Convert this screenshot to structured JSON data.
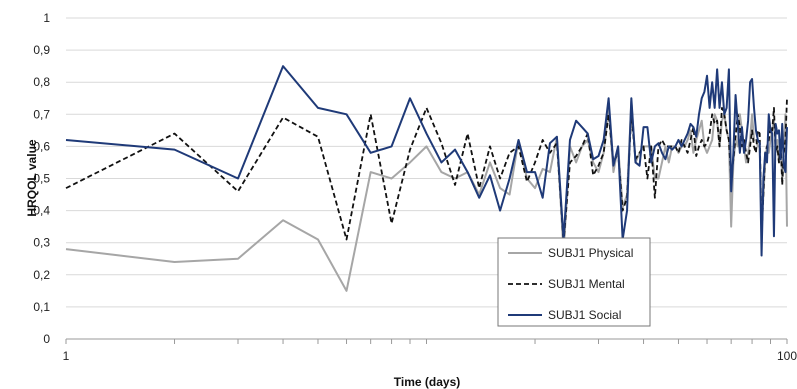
{
  "chart_data": {
    "type": "line",
    "xlabel": "Time (days)",
    "ylabel": "HRQOL value",
    "x_scale": "log",
    "xlim": [
      1,
      100
    ],
    "ylim": [
      0,
      1
    ],
    "x_ticks": [
      {
        "value": 1,
        "label": "1"
      },
      {
        "value": 100,
        "label": "100"
      }
    ],
    "y_ticks": [
      {
        "value": 0,
        "label": "0"
      },
      {
        "value": 0.1,
        "label": "0,1"
      },
      {
        "value": 0.2,
        "label": "0,2"
      },
      {
        "value": 0.3,
        "label": "0,3"
      },
      {
        "value": 0.4,
        "label": "0,4"
      },
      {
        "value": 0.5,
        "label": "0,5"
      },
      {
        "value": 0.6,
        "label": "0,6"
      },
      {
        "value": 0.7,
        "label": "0,7"
      },
      {
        "value": 0.8,
        "label": "0,8"
      },
      {
        "value": 0.9,
        "label": "0,9"
      },
      {
        "value": 1,
        "label": "1"
      }
    ],
    "grid": "horizontal",
    "legend_position": "bottom-right",
    "x": [
      1,
      2,
      3,
      4,
      5,
      6,
      7,
      8,
      9,
      10,
      11,
      12,
      13,
      14,
      15,
      16,
      17,
      18,
      19,
      20,
      21,
      22,
      23,
      24,
      25,
      26,
      27,
      28,
      29,
      30,
      31,
      32,
      33,
      34,
      35,
      36,
      37,
      38,
      39,
      40,
      41,
      42,
      43,
      44,
      45,
      46,
      47,
      48,
      49,
      50,
      51,
      52,
      53,
      54,
      55,
      56,
      57,
      58,
      59,
      60,
      61,
      62,
      63,
      64,
      65,
      66,
      67,
      68,
      69,
      70,
      71,
      72,
      73,
      74,
      75,
      76,
      77,
      78,
      79,
      80,
      81,
      82,
      83,
      84,
      85,
      86,
      87,
      88,
      89,
      90,
      91,
      92,
      93,
      94,
      95,
      96,
      97,
      98,
      99,
      100
    ],
    "series": [
      {
        "name": "SUBJ1 Physical",
        "color": "#a6a6a6",
        "dash": "solid",
        "values": [
          0.28,
          0.24,
          0.25,
          0.37,
          0.31,
          0.15,
          0.52,
          0.5,
          0.55,
          0.6,
          0.52,
          0.5,
          0.52,
          0.45,
          0.55,
          0.47,
          0.45,
          0.62,
          0.5,
          0.47,
          0.53,
          0.52,
          0.63,
          0.27,
          0.6,
          0.55,
          0.6,
          0.62,
          0.55,
          0.52,
          0.58,
          0.72,
          0.52,
          0.6,
          0.41,
          0.45,
          0.74,
          0.55,
          0.58,
          0.6,
          0.6,
          0.6,
          0.5,
          0.5,
          0.55,
          0.6,
          0.55,
          0.6,
          0.6,
          0.58,
          0.6,
          0.6,
          0.62,
          0.65,
          0.58,
          0.62,
          0.65,
          0.68,
          0.6,
          0.58,
          0.6,
          0.62,
          0.7,
          0.68,
          0.6,
          0.68,
          0.7,
          0.65,
          0.62,
          0.35,
          0.55,
          0.62,
          0.6,
          0.7,
          0.65,
          0.6,
          0.55,
          0.58,
          0.62,
          0.7,
          0.62,
          0.62,
          0.6,
          0.6,
          0.35,
          0.45,
          0.55,
          0.6,
          0.58,
          0.62,
          0.65,
          0.68,
          0.6,
          0.62,
          0.55,
          0.6,
          0.5,
          0.58,
          0.7,
          0.35
        ]
      },
      {
        "name": "SUBJ1 Mental",
        "color": "#111111",
        "dash": "dashed",
        "values": [
          0.47,
          0.64,
          0.46,
          0.69,
          0.63,
          0.31,
          0.7,
          0.36,
          0.59,
          0.72,
          0.61,
          0.48,
          0.64,
          0.47,
          0.6,
          0.5,
          0.58,
          0.6,
          0.49,
          0.55,
          0.62,
          0.58,
          0.61,
          0.3,
          0.55,
          0.57,
          0.6,
          0.64,
          0.51,
          0.54,
          0.58,
          0.7,
          0.55,
          0.58,
          0.4,
          0.44,
          0.7,
          0.56,
          0.58,
          0.6,
          0.5,
          0.6,
          0.44,
          0.6,
          0.62,
          0.6,
          0.6,
          0.6,
          0.6,
          0.58,
          0.62,
          0.6,
          0.58,
          0.62,
          0.66,
          0.57,
          0.6,
          0.62,
          0.6,
          0.61,
          0.64,
          0.7,
          0.67,
          0.68,
          0.6,
          0.72,
          0.7,
          0.65,
          0.62,
          0.5,
          0.56,
          0.63,
          0.7,
          0.66,
          0.6,
          0.62,
          0.58,
          0.55,
          0.6,
          0.65,
          0.6,
          0.58,
          0.65,
          0.64,
          0.32,
          0.45,
          0.58,
          0.6,
          0.62,
          0.66,
          0.65,
          0.72,
          0.58,
          0.6,
          0.55,
          0.62,
          0.48,
          0.58,
          0.62,
          0.75
        ]
      },
      {
        "name": "SUBJ1 Social",
        "color": "#1f3a78",
        "dash": "solid",
        "values": [
          0.62,
          0.59,
          0.5,
          0.85,
          0.72,
          0.7,
          0.58,
          0.6,
          0.75,
          0.64,
          0.55,
          0.59,
          0.52,
          0.44,
          0.51,
          0.4,
          0.5,
          0.62,
          0.52,
          0.52,
          0.44,
          0.61,
          0.63,
          0.31,
          0.62,
          0.68,
          0.66,
          0.64,
          0.56,
          0.57,
          0.62,
          0.75,
          0.54,
          0.6,
          0.31,
          0.4,
          0.75,
          0.55,
          0.54,
          0.66,
          0.66,
          0.55,
          0.6,
          0.61,
          0.58,
          0.56,
          0.6,
          0.59,
          0.6,
          0.62,
          0.6,
          0.62,
          0.64,
          0.67,
          0.66,
          0.63,
          0.7,
          0.75,
          0.77,
          0.82,
          0.72,
          0.8,
          0.72,
          0.84,
          0.72,
          0.8,
          0.7,
          0.72,
          0.84,
          0.46,
          0.58,
          0.76,
          0.67,
          0.58,
          0.66,
          0.58,
          0.62,
          0.68,
          0.8,
          0.81,
          0.72,
          0.65,
          0.62,
          0.61,
          0.26,
          0.5,
          0.58,
          0.55,
          0.7,
          0.65,
          0.64,
          0.32,
          0.67,
          0.64,
          0.65,
          0.56,
          0.67,
          0.54,
          0.52,
          0.66
        ]
      }
    ]
  }
}
